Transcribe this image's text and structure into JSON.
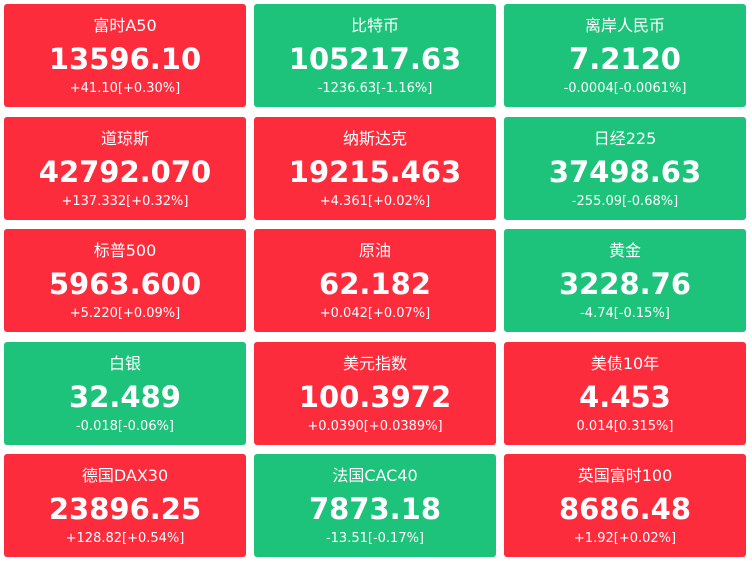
{
  "tiles": [
    {
      "name": "富时A50",
      "price": "13596.10",
      "change": "+41.10[+0.30%]",
      "color": "#fc2c3d"
    },
    {
      "name": "比特币",
      "price": "105217.63",
      "change": "-1236.63[-1.16%]",
      "color": "#1dc27b"
    },
    {
      "name": "离岸人民币",
      "price": "7.2120",
      "change": "-0.0004[-0.0061%]",
      "color": "#1dc27b"
    },
    {
      "name": "道琼斯",
      "price": "42792.070",
      "change": "+137.332[+0.32%]",
      "color": "#fc2c3d"
    },
    {
      "name": "纳斯达克",
      "price": "19215.463",
      "change": "+4.361[+0.02%]",
      "color": "#fc2c3d"
    },
    {
      "name": "日经225",
      "price": "37498.63",
      "change": "-255.09[-0.68%]",
      "color": "#1dc27b"
    },
    {
      "name": "标普500",
      "price": "5963.600",
      "change": "+5.220[+0.09%]",
      "color": "#fc2c3d"
    },
    {
      "name": "原油",
      "price": "62.182",
      "change": "+0.042[+0.07%]",
      "color": "#fc2c3d"
    },
    {
      "name": "黄金",
      "price": "3228.76",
      "change": "-4.74[-0.15%]",
      "color": "#1dc27b"
    },
    {
      "name": "白银",
      "price": "32.489",
      "change": "-0.018[-0.06%]",
      "color": "#1dc27b"
    },
    {
      "name": "美元指数",
      "price": "100.3972",
      "change": "+0.0390[+0.0389%]",
      "color": "#fc2c3d"
    },
    {
      "name": "美债10年",
      "price": "4.453",
      "change": "0.014[0.315%]",
      "color": "#fc2c3d"
    },
    {
      "name": "德国DAX30",
      "price": "23896.25",
      "change": "+128.82[+0.54%]",
      "color": "#fc2c3d"
    },
    {
      "name": "法国CAC40",
      "price": "7873.18",
      "change": "-13.51[-0.17%]",
      "color": "#1dc27b"
    },
    {
      "name": "英国富时100",
      "price": "8686.48",
      "change": "+1.92[+0.02%]",
      "color": "#fc2c3d"
    }
  ]
}
